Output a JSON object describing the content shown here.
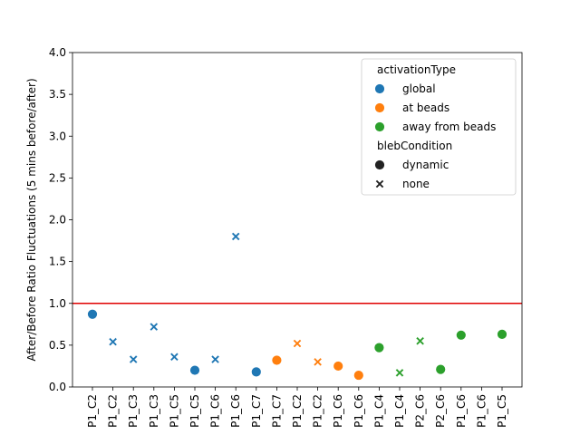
{
  "chart_data": {
    "type": "scatter",
    "ylabel": "After/Before Ratio Fluctuations (5 mins before/after)",
    "xlabel": "",
    "ylim": [
      0.0,
      4.0
    ],
    "yticks": [
      "0.0",
      "0.5",
      "1.0",
      "1.5",
      "2.0",
      "2.5",
      "3.0",
      "3.5",
      "4.0"
    ],
    "categories": [
      "P1_C2",
      "P1_C2",
      "P1_C3",
      "P1_C3",
      "P1_C5",
      "P1_C5",
      "P1_C6",
      "P1_C6",
      "P1_C7",
      "P1_C7",
      "P1_C2",
      "P1_C2",
      "P1_C6",
      "P1_C6",
      "P1_C4",
      "P1_C4",
      "P2_C6",
      "P2_C6",
      "P1_C6",
      "P1_C6",
      "P1_C5"
    ],
    "reference_line": {
      "y": 1.0,
      "color": "#e00000"
    },
    "points": [
      {
        "x": 0,
        "y": 0.87,
        "activation": "global",
        "bleb": "dynamic"
      },
      {
        "x": 1,
        "y": 0.54,
        "activation": "global",
        "bleb": "none"
      },
      {
        "x": 2,
        "y": 0.33,
        "activation": "global",
        "bleb": "none"
      },
      {
        "x": 3,
        "y": 0.72,
        "activation": "global",
        "bleb": "none"
      },
      {
        "x": 4,
        "y": 0.36,
        "activation": "global",
        "bleb": "none"
      },
      {
        "x": 5,
        "y": 0.2,
        "activation": "global",
        "bleb": "dynamic"
      },
      {
        "x": 6,
        "y": 0.33,
        "activation": "global",
        "bleb": "none"
      },
      {
        "x": 7,
        "y": 1.8,
        "activation": "global",
        "bleb": "none"
      },
      {
        "x": 8,
        "y": 0.18,
        "activation": "global",
        "bleb": "dynamic"
      },
      {
        "x": 9,
        "y": 0.32,
        "activation": "at beads",
        "bleb": "dynamic"
      },
      {
        "x": 10,
        "y": 0.52,
        "activation": "at beads",
        "bleb": "none"
      },
      {
        "x": 11,
        "y": 0.3,
        "activation": "at beads",
        "bleb": "none"
      },
      {
        "x": 12,
        "y": 0.25,
        "activation": "at beads",
        "bleb": "dynamic"
      },
      {
        "x": 13,
        "y": 0.14,
        "activation": "at beads",
        "bleb": "dynamic"
      },
      {
        "x": 14,
        "y": 0.47,
        "activation": "away from beads",
        "bleb": "dynamic"
      },
      {
        "x": 15,
        "y": 0.17,
        "activation": "away from beads",
        "bleb": "none"
      },
      {
        "x": 16,
        "y": 0.55,
        "activation": "away from beads",
        "bleb": "none"
      },
      {
        "x": 17,
        "y": 0.21,
        "activation": "away from beads",
        "bleb": "dynamic"
      },
      {
        "x": 18,
        "y": 0.62,
        "activation": "away from beads",
        "bleb": "dynamic"
      },
      {
        "x": 20,
        "y": 0.63,
        "activation": "away from beads",
        "bleb": "dynamic"
      }
    ],
    "legend": {
      "placement": "top-right",
      "hue_title": "activationType",
      "hue_entries": [
        {
          "label": "global",
          "color": "#1f77b4"
        },
        {
          "label": "at beads",
          "color": "#ff7f0e"
        },
        {
          "label": "away from beads",
          "color": "#2ca02c"
        }
      ],
      "style_title": "blebCondition",
      "style_entries": [
        {
          "label": "dynamic",
          "marker": "circle"
        },
        {
          "label": "none",
          "marker": "x"
        }
      ]
    }
  }
}
